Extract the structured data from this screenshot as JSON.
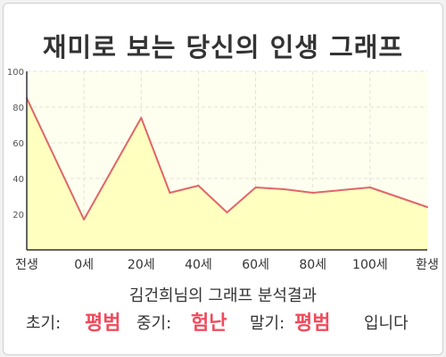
{
  "title": "재미로 보는 당신의 인생 그래프",
  "subtitle": "김건희님의 그래프 분석결과",
  "summary": {
    "early_label": "초기:",
    "early_value": "평범",
    "middle_label": "중기:",
    "middle_value": "험난",
    "late_label": "말기:",
    "late_value": "평범",
    "ending": "입니다"
  },
  "colors": {
    "line": "#e06666",
    "area": "#ffffc0",
    "highlight": "#ee4b5d",
    "plot_background": "#fffff0"
  },
  "chart_data": {
    "type": "area",
    "title": "재미로 보는 당신의 인생 그래프",
    "xlabel": "",
    "ylabel": "",
    "ylim": [
      0,
      100
    ],
    "y_ticks": [
      20,
      40,
      60,
      80,
      100
    ],
    "x_tick_labels": [
      "전생",
      "0세",
      "20세",
      "40세",
      "60세",
      "80세",
      "100세",
      "환생"
    ],
    "grid": true,
    "legend": "none",
    "series": [
      {
        "points": [
          {
            "age": "전생",
            "value": 85
          },
          {
            "age": 0,
            "value": 17
          },
          {
            "age": 20,
            "value": 74
          },
          {
            "age": 30,
            "value": 32
          },
          {
            "age": 40,
            "value": 36
          },
          {
            "age": 50,
            "value": 21
          },
          {
            "age": 60,
            "value": 35
          },
          {
            "age": 70,
            "value": 34
          },
          {
            "age": 80,
            "value": 32
          },
          {
            "age": 100,
            "value": 35
          },
          {
            "age": "환생",
            "value": 24
          }
        ]
      }
    ]
  }
}
